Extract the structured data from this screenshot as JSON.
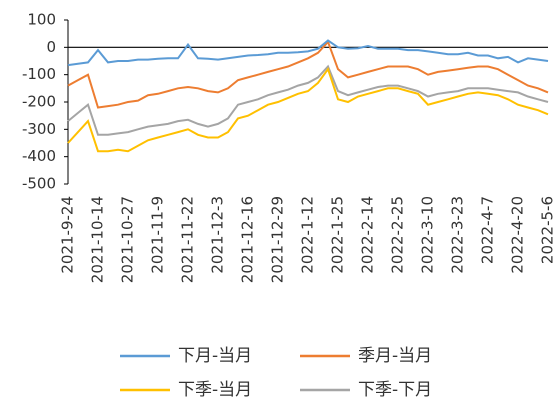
{
  "chart_data": {
    "type": "line",
    "categories": [
      "2021-9-24",
      null,
      null,
      "2021-10-14",
      null,
      null,
      "2021-10-27",
      null,
      null,
      "2021-11-9",
      null,
      null,
      "2021-11-22",
      null,
      null,
      "2021-12-3",
      null,
      null,
      "2021-12-16",
      null,
      null,
      "2021-12-29",
      null,
      null,
      "2022-1-12",
      null,
      null,
      "2022-1-25",
      null,
      null,
      "2022-2-14",
      null,
      null,
      "2022-2-25",
      null,
      null,
      "2022-3-10",
      null,
      null,
      "2022-3-23",
      null,
      null,
      "2022-4-7",
      null,
      null,
      "2022-4-20",
      null,
      null,
      "2022-5-6"
    ],
    "series": [
      {
        "name": "下月-当月",
        "color": "#5b9bd5",
        "values": [
          -65,
          -60,
          -55,
          -10,
          -55,
          -50,
          -50,
          -45,
          -45,
          -42,
          -40,
          -40,
          10,
          -40,
          -42,
          -45,
          -40,
          -35,
          -30,
          -28,
          -25,
          -20,
          -20,
          -18,
          -15,
          -5,
          25,
          0,
          -5,
          -3,
          5,
          -5,
          -5,
          -5,
          -10,
          -10,
          -15,
          -20,
          -25,
          -25,
          -20,
          -30,
          -30,
          -40,
          -35,
          -55,
          -40,
          -45,
          -50
        ]
      },
      {
        "name": "季月-当月",
        "color": "#ed7d31",
        "values": [
          -140,
          -120,
          -100,
          -220,
          -215,
          -210,
          -200,
          -195,
          -175,
          -170,
          -160,
          -150,
          -145,
          -150,
          -160,
          -165,
          -150,
          -120,
          -110,
          -100,
          -90,
          -80,
          -70,
          -55,
          -40,
          -20,
          20,
          -80,
          -110,
          -100,
          -90,
          -80,
          -70,
          -70,
          -70,
          -80,
          -100,
          -90,
          -85,
          -80,
          -75,
          -70,
          -70,
          -80,
          -100,
          -120,
          -140,
          -150,
          -165
        ]
      },
      {
        "name": "下季-当月",
        "color": "#ffc000",
        "values": [
          -350,
          -310,
          -270,
          -380,
          -380,
          -375,
          -380,
          -360,
          -340,
          -330,
          -320,
          -310,
          -300,
          -320,
          -330,
          -330,
          -310,
          -260,
          -250,
          -230,
          -210,
          -200,
          -185,
          -170,
          -160,
          -130,
          -80,
          -190,
          -200,
          -180,
          -170,
          -160,
          -150,
          -150,
          -160,
          -170,
          -210,
          -200,
          -190,
          -180,
          -170,
          -165,
          -170,
          -175,
          -190,
          -210,
          -220,
          -230,
          -245
        ]
      },
      {
        "name": "下季-下月",
        "color": "#a5a5a5",
        "values": [
          -270,
          -240,
          -210,
          -320,
          -320,
          -315,
          -310,
          -300,
          -290,
          -285,
          -280,
          -270,
          -265,
          -280,
          -290,
          -280,
          -260,
          -210,
          -200,
          -190,
          -175,
          -165,
          -155,
          -140,
          -130,
          -110,
          -70,
          -160,
          -175,
          -165,
          -155,
          -145,
          -140,
          -140,
          -150,
          -160,
          -180,
          -170,
          -165,
          -160,
          -150,
          -150,
          -150,
          -155,
          -160,
          -165,
          -180,
          -190,
          -200
        ]
      }
    ],
    "ylim": [
      -500,
      100
    ],
    "yticks": [
      -500,
      -400,
      -300,
      -200,
      -100,
      0,
      100
    ],
    "grid": false,
    "legend": "bottom"
  }
}
